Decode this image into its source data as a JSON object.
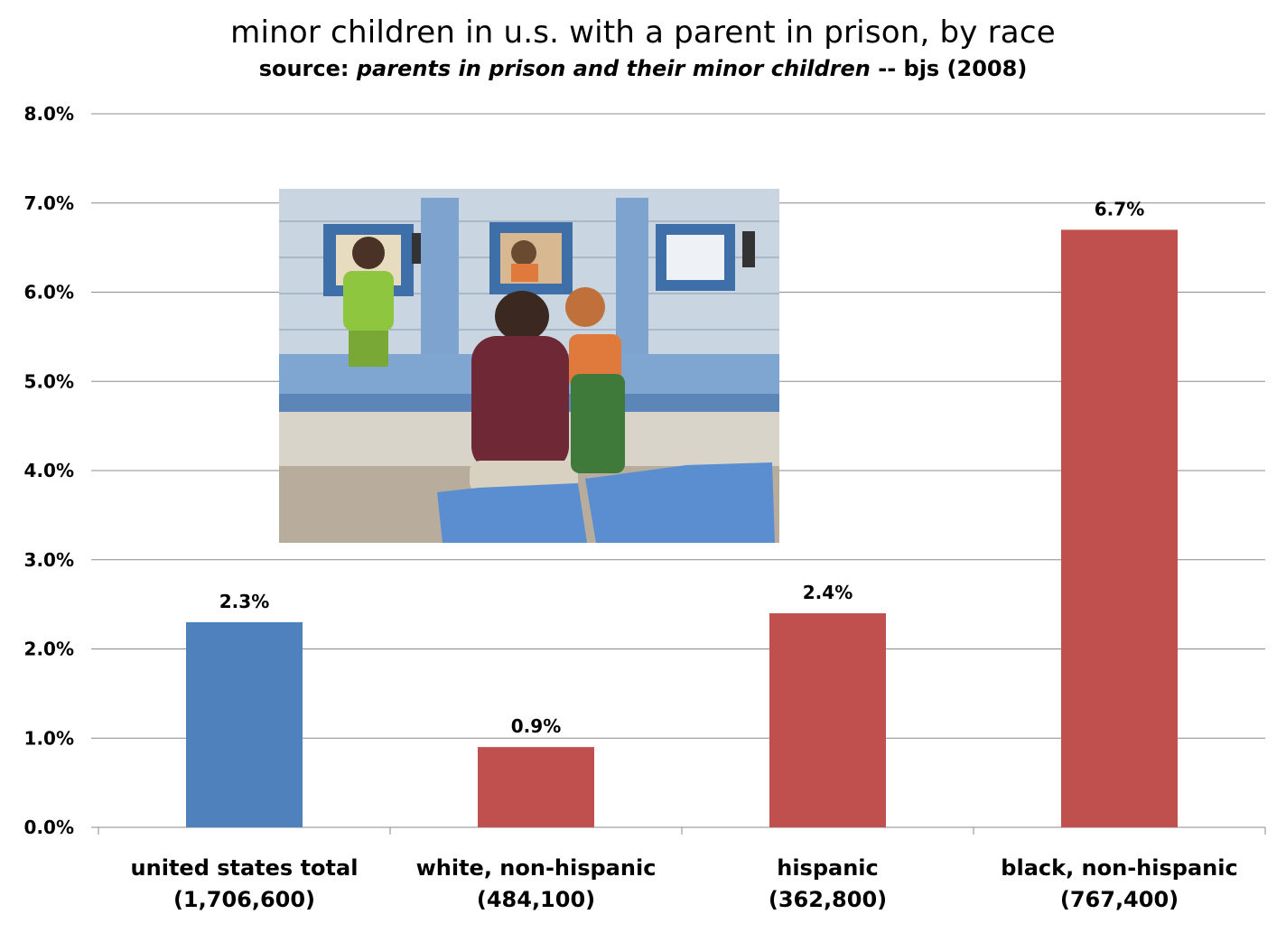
{
  "header": {
    "title": "minor children in u.s. with a parent in prison, by race",
    "subtitle_prefix": "source: ",
    "subtitle_italic": "parents in prison and their minor children",
    "subtitle_suffix": " -- bjs (2008)"
  },
  "photo": {
    "description_icon": "prison-visitation-photo"
  },
  "chart_data": {
    "type": "bar",
    "title": "minor children in u.s. with a parent in prison, by race",
    "categories": [
      "united states total",
      "white, non-hispanic",
      "hispanic",
      "black, non-hispanic"
    ],
    "category_counts": [
      "(1,706,600)",
      "(484,100)",
      "(362,800)",
      "(767,400)"
    ],
    "values": [
      2.3,
      0.9,
      2.4,
      6.7
    ],
    "value_labels": [
      "2.3%",
      "0.9%",
      "2.4%",
      "6.7%"
    ],
    "colors": [
      "#4F81BD",
      "#C0504D",
      "#C0504D",
      "#C0504D"
    ],
    "ylim": [
      0,
      8
    ],
    "yticks": [
      "0.0%",
      "1.0%",
      "2.0%",
      "3.0%",
      "4.0%",
      "5.0%",
      "6.0%",
      "7.0%",
      "8.0%"
    ],
    "xlabel": "",
    "ylabel": "",
    "grid": true
  }
}
